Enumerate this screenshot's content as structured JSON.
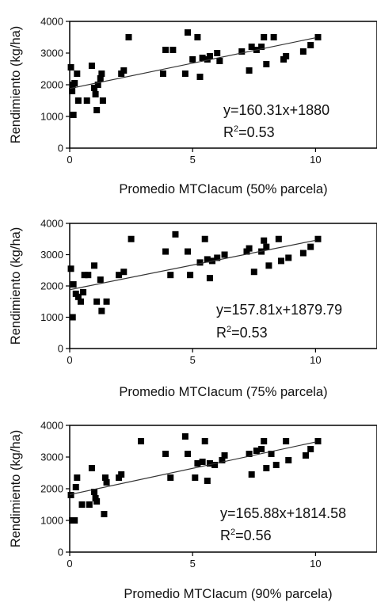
{
  "chart_data": [
    {
      "type": "scatter",
      "xlabel": "Promedio MTCIacum (50% parcela)",
      "ylabel": "Rendimiento (kg/ha)",
      "xlim": [
        0,
        12.5
      ],
      "ylim": [
        0,
        4000
      ],
      "x_ticks": [
        0,
        5,
        10
      ],
      "y_ticks": [
        0,
        1000,
        2000,
        3000,
        4000
      ],
      "grid": false,
      "equation": "y=160.31x+1880",
      "r2_prefix": "R",
      "r2_sup": "2",
      "r2_value": "=0.53",
      "trendline": {
        "slope": 160.31,
        "intercept": 1880,
        "x_range": [
          0,
          10
        ]
      },
      "points": [
        [
          0.05,
          2550
        ],
        [
          0.1,
          1800
        ],
        [
          0.12,
          2000
        ],
        [
          0.15,
          1050
        ],
        [
          0.2,
          2050
        ],
        [
          0.3,
          2350
        ],
        [
          0.35,
          1500
        ],
        [
          0.7,
          1500
        ],
        [
          0.9,
          2600
        ],
        [
          1.0,
          1900
        ],
        [
          1.05,
          1700
        ],
        [
          1.1,
          1200
        ],
        [
          1.15,
          2000
        ],
        [
          1.25,
          2200
        ],
        [
          1.3,
          2350
        ],
        [
          1.35,
          1500
        ],
        [
          2.1,
          2350
        ],
        [
          2.2,
          2450
        ],
        [
          2.4,
          3500
        ],
        [
          3.8,
          2350
        ],
        [
          3.9,
          3100
        ],
        [
          4.2,
          3100
        ],
        [
          4.7,
          2350
        ],
        [
          4.8,
          3650
        ],
        [
          5.0,
          2800
        ],
        [
          5.2,
          3500
        ],
        [
          5.3,
          2250
        ],
        [
          5.4,
          2850
        ],
        [
          5.6,
          2800
        ],
        [
          5.7,
          2900
        ],
        [
          6.0,
          3000
        ],
        [
          6.1,
          2750
        ],
        [
          7.0,
          3050
        ],
        [
          7.3,
          2450
        ],
        [
          7.4,
          3200
        ],
        [
          7.6,
          3100
        ],
        [
          7.8,
          3200
        ],
        [
          7.9,
          3500
        ],
        [
          8.0,
          2650
        ],
        [
          8.3,
          3500
        ],
        [
          8.7,
          2800
        ],
        [
          8.8,
          2900
        ],
        [
          9.5,
          3050
        ],
        [
          9.8,
          3250
        ],
        [
          10.1,
          3500
        ]
      ]
    },
    {
      "type": "scatter",
      "xlabel": "Promedio MTCIacum (75% parcela)",
      "ylabel": "Rendimiento (kg/ha)",
      "xlim": [
        0,
        12.5
      ],
      "ylim": [
        0,
        4000
      ],
      "x_ticks": [
        0,
        5,
        10
      ],
      "y_ticks": [
        0,
        1000,
        2000,
        3000,
        4000
      ],
      "grid": false,
      "equation": "y=157.81x+1879.79",
      "r2_prefix": "R",
      "r2_sup": "2",
      "r2_value": "=0.53",
      "trendline": {
        "slope": 157.81,
        "intercept": 1879.79,
        "x_range": [
          0,
          10
        ]
      },
      "points": [
        [
          0.05,
          2550
        ],
        [
          0.12,
          1000
        ],
        [
          0.15,
          2050
        ],
        [
          0.25,
          1750
        ],
        [
          0.35,
          1650
        ],
        [
          0.45,
          1500
        ],
        [
          0.55,
          1800
        ],
        [
          0.6,
          2350
        ],
        [
          0.75,
          2350
        ],
        [
          1.0,
          2650
        ],
        [
          1.1,
          1500
        ],
        [
          1.25,
          2200
        ],
        [
          1.3,
          1200
        ],
        [
          1.5,
          1500
        ],
        [
          2.0,
          2350
        ],
        [
          2.2,
          2450
        ],
        [
          2.5,
          3500
        ],
        [
          3.9,
          3100
        ],
        [
          4.1,
          2350
        ],
        [
          4.3,
          3650
        ],
        [
          4.8,
          3100
        ],
        [
          4.9,
          2350
        ],
        [
          5.3,
          2750
        ],
        [
          5.5,
          3500
        ],
        [
          5.6,
          2850
        ],
        [
          5.7,
          2250
        ],
        [
          5.8,
          2800
        ],
        [
          6.0,
          2900
        ],
        [
          6.3,
          3000
        ],
        [
          7.2,
          3100
        ],
        [
          7.3,
          3200
        ],
        [
          7.5,
          2450
        ],
        [
          7.8,
          3100
        ],
        [
          7.9,
          3450
        ],
        [
          8.0,
          3250
        ],
        [
          8.1,
          2650
        ],
        [
          8.5,
          3500
        ],
        [
          8.6,
          2800
        ],
        [
          8.9,
          2900
        ],
        [
          9.5,
          3050
        ],
        [
          9.8,
          3250
        ],
        [
          10.1,
          3500
        ]
      ]
    },
    {
      "type": "scatter",
      "xlabel": "Promedio MTCIacum (90% parcela)",
      "ylabel": "Rendimiento (kg/ha)",
      "xlim": [
        0,
        12.5
      ],
      "ylim": [
        0,
        4000
      ],
      "x_ticks": [
        0,
        5,
        10
      ],
      "y_ticks": [
        0,
        1000,
        2000,
        3000,
        4000
      ],
      "grid": false,
      "equation": "y=165.88x+1814.58",
      "r2_prefix": "R",
      "r2_sup": "2",
      "r2_value": "=0.56",
      "trendline": {
        "slope": 165.88,
        "intercept": 1814.58,
        "x_range": [
          0,
          10
        ]
      },
      "points": [
        [
          0.05,
          1800
        ],
        [
          0.1,
          1000
        ],
        [
          0.2,
          1000
        ],
        [
          0.25,
          2050
        ],
        [
          0.3,
          2350
        ],
        [
          0.5,
          1500
        ],
        [
          0.8,
          1500
        ],
        [
          0.9,
          2650
        ],
        [
          1.0,
          1900
        ],
        [
          1.05,
          1700
        ],
        [
          1.1,
          1600
        ],
        [
          1.4,
          1200
        ],
        [
          1.45,
          2350
        ],
        [
          1.5,
          2200
        ],
        [
          2.0,
          2350
        ],
        [
          2.1,
          2450
        ],
        [
          2.9,
          3500
        ],
        [
          3.9,
          3100
        ],
        [
          4.1,
          2350
        ],
        [
          4.7,
          3650
        ],
        [
          4.8,
          3100
        ],
        [
          5.1,
          2350
        ],
        [
          5.2,
          2800
        ],
        [
          5.4,
          2850
        ],
        [
          5.5,
          3500
        ],
        [
          5.6,
          2250
        ],
        [
          5.7,
          2800
        ],
        [
          5.9,
          2750
        ],
        [
          6.2,
          2900
        ],
        [
          6.3,
          3050
        ],
        [
          7.3,
          3100
        ],
        [
          7.4,
          2450
        ],
        [
          7.6,
          3200
        ],
        [
          7.8,
          3250
        ],
        [
          7.9,
          3500
        ],
        [
          8.0,
          2650
        ],
        [
          8.2,
          3100
        ],
        [
          8.4,
          2750
        ],
        [
          8.8,
          3500
        ],
        [
          8.9,
          2900
        ],
        [
          9.6,
          3050
        ],
        [
          9.8,
          3250
        ],
        [
          10.1,
          3500
        ]
      ]
    }
  ]
}
